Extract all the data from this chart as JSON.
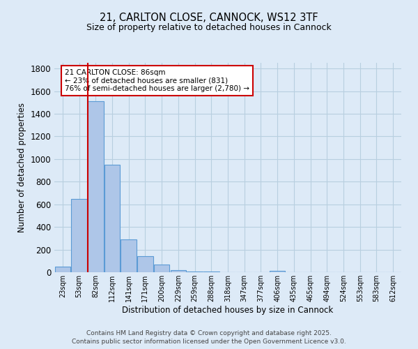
{
  "title1": "21, CARLTON CLOSE, CANNOCK, WS12 3TF",
  "title2": "Size of property relative to detached houses in Cannock",
  "xlabel": "Distribution of detached houses by size in Cannock",
  "ylabel": "Number of detached properties",
  "bar_labels": [
    "23sqm",
    "53sqm",
    "82sqm",
    "112sqm",
    "141sqm",
    "171sqm",
    "200sqm",
    "229sqm",
    "259sqm",
    "288sqm",
    "318sqm",
    "347sqm",
    "377sqm",
    "406sqm",
    "435sqm",
    "465sqm",
    "494sqm",
    "524sqm",
    "553sqm",
    "583sqm",
    "612sqm"
  ],
  "bar_values": [
    50,
    650,
    1510,
    950,
    290,
    140,
    65,
    20,
    8,
    4,
    2,
    1,
    1,
    10,
    0,
    0,
    0,
    0,
    0,
    0,
    0
  ],
  "bar_color": "#aec6e8",
  "bar_edge_color": "#5b9bd5",
  "background_color": "#ddeaf7",
  "grid_color": "#c8d8ea",
  "red_line_x": 2,
  "annotation_text": "21 CARLTON CLOSE: 86sqm\n← 23% of detached houses are smaller (831)\n76% of semi-detached houses are larger (2,780) →",
  "annotation_box_color": "#ffffff",
  "annotation_box_edge": "#cc0000",
  "ylim": [
    0,
    1850
  ],
  "yticks": [
    0,
    200,
    400,
    600,
    800,
    1000,
    1200,
    1400,
    1600,
    1800
  ],
  "footer1": "Contains HM Land Registry data © Crown copyright and database right 2025.",
  "footer2": "Contains public sector information licensed under the Open Government Licence v3.0."
}
